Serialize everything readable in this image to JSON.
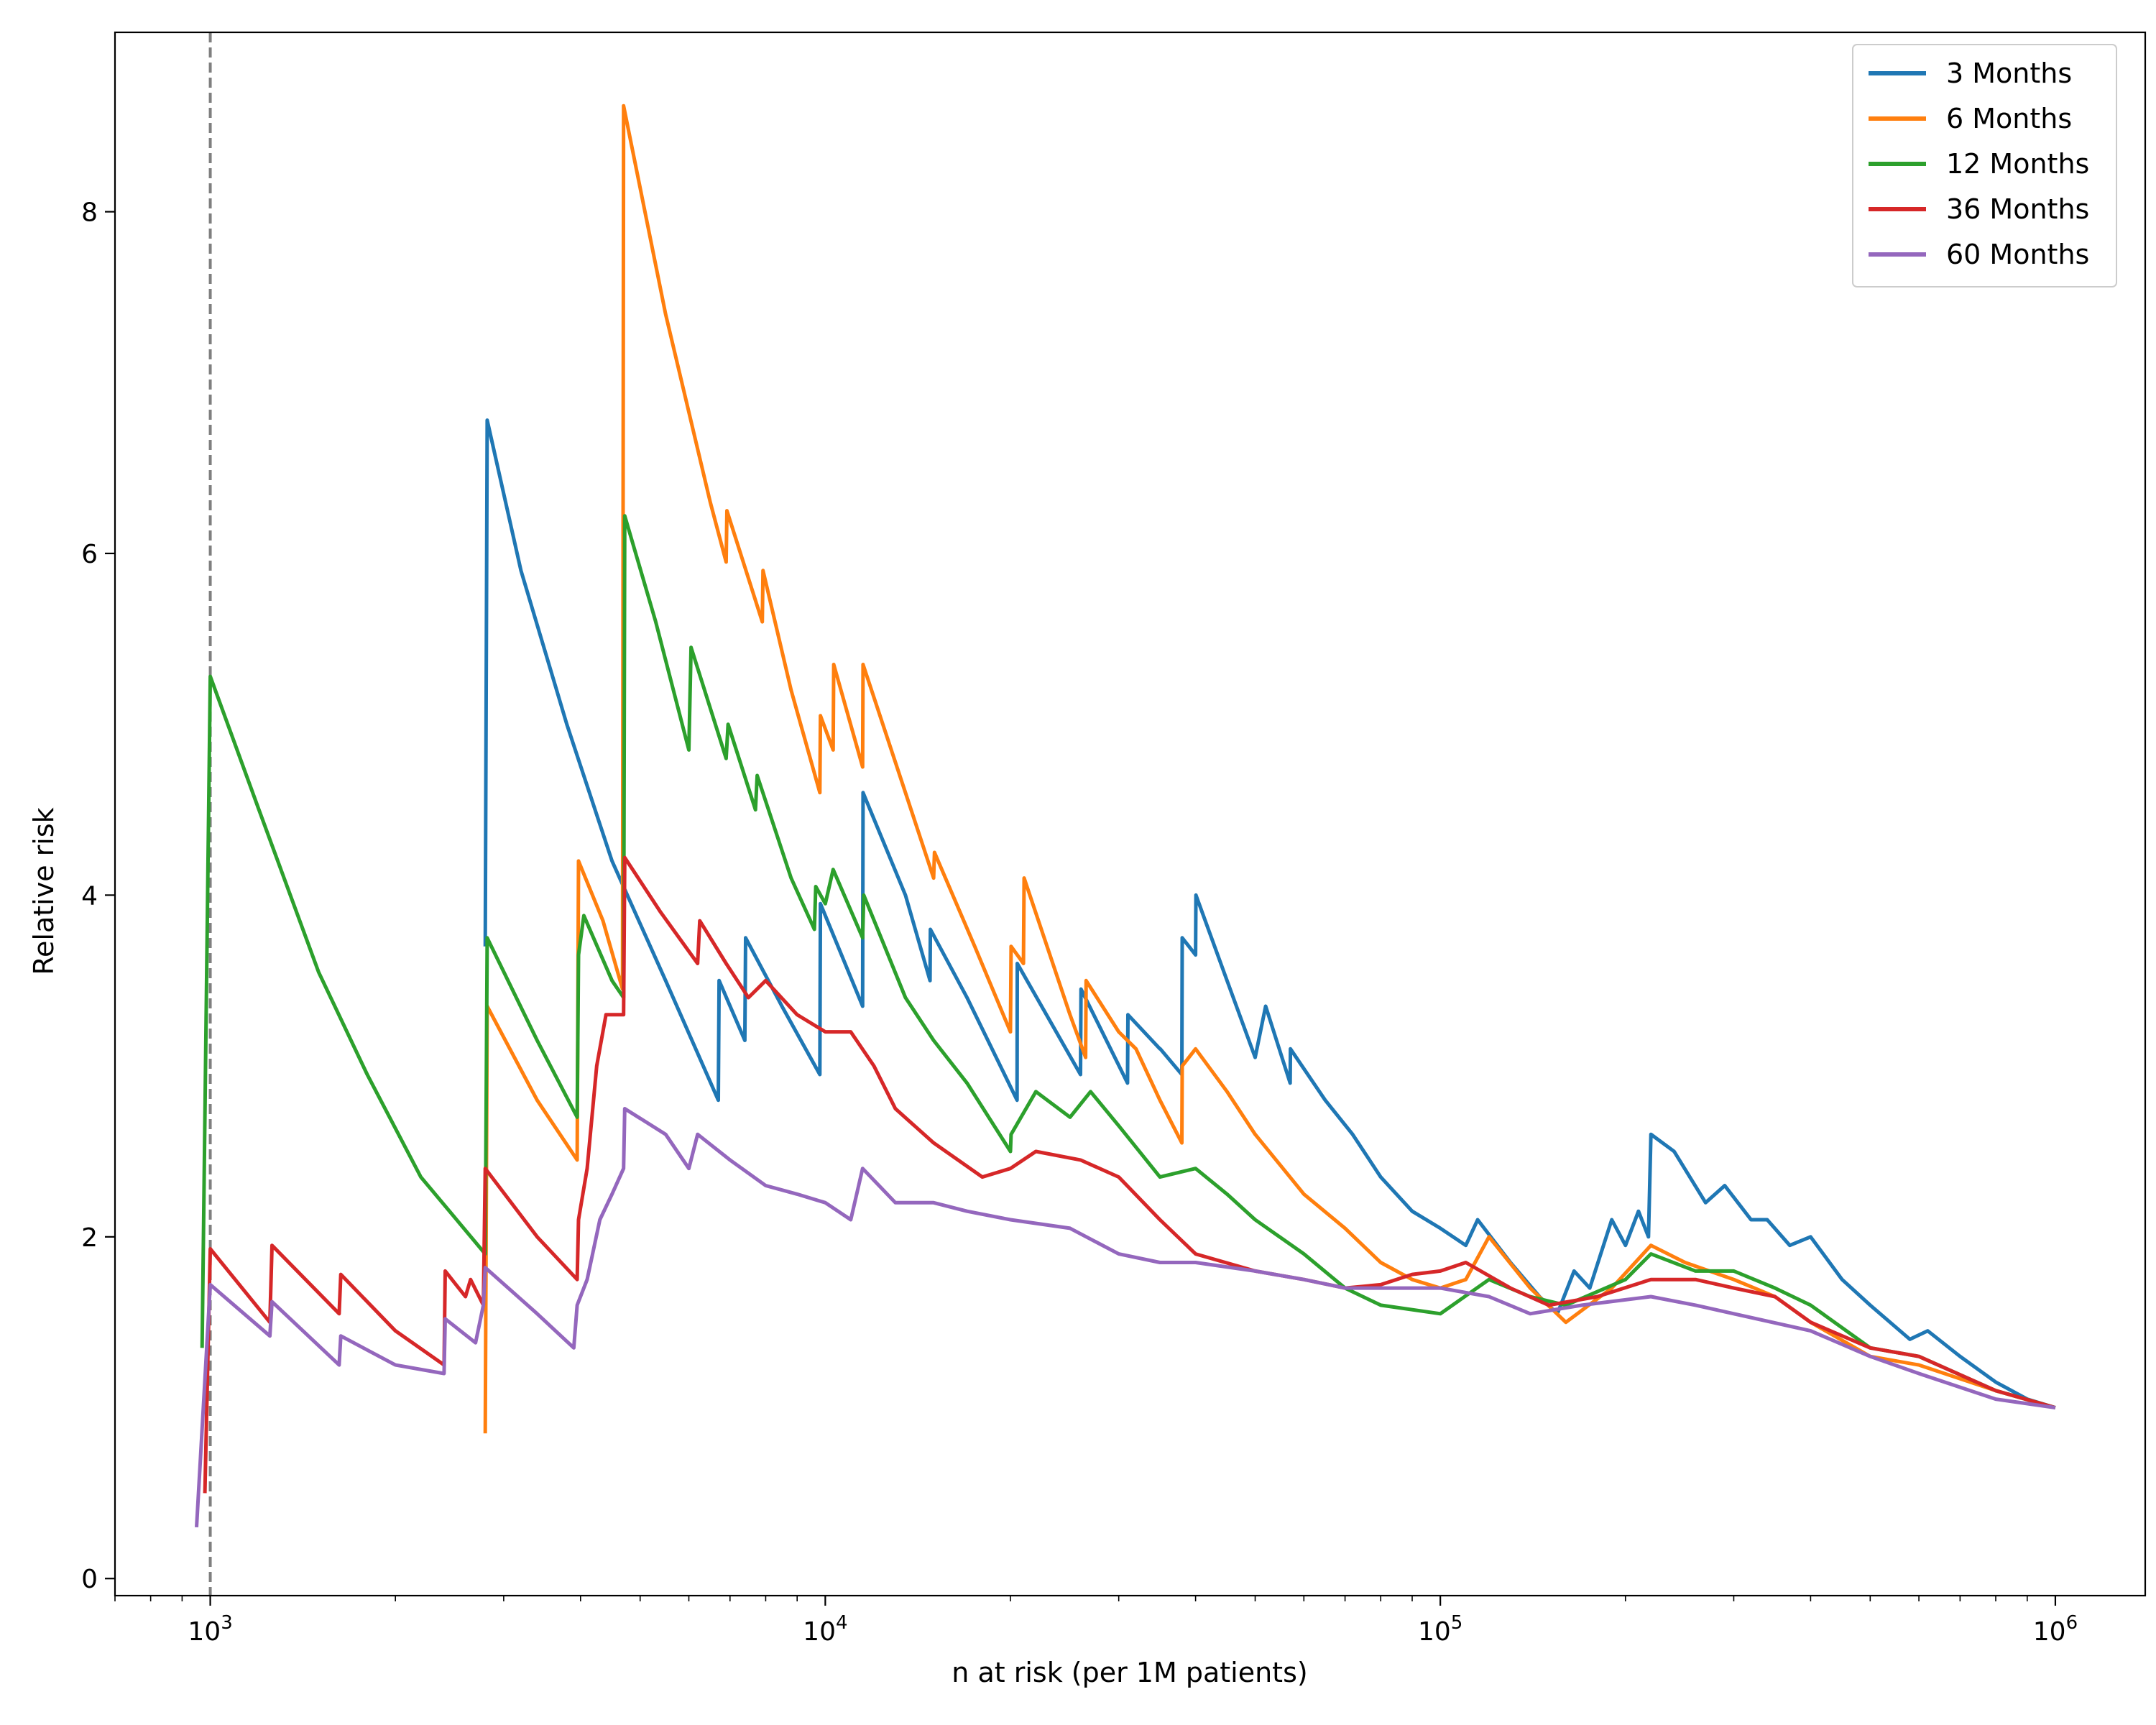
{
  "chart_data": {
    "type": "line",
    "xlabel": "n at risk (per 1M patients)",
    "ylabel": "Relative risk",
    "xscale": "log",
    "xlim": [
      700,
      1400000
    ],
    "ylim": [
      -0.1,
      9.05
    ],
    "x_ticks": [
      {
        "value": 1000,
        "base": "10",
        "exp": "3"
      },
      {
        "value": 10000,
        "base": "10",
        "exp": "4"
      },
      {
        "value": 100000,
        "base": "10",
        "exp": "5"
      },
      {
        "value": 1000000,
        "base": "10",
        "exp": "6"
      }
    ],
    "y_ticks": [
      {
        "value": 0,
        "label": "0"
      },
      {
        "value": 2,
        "label": "2"
      },
      {
        "value": 4,
        "label": "4"
      },
      {
        "value": 6,
        "label": "6"
      },
      {
        "value": 8,
        "label": "8"
      }
    ],
    "reference_line": {
      "x": 1000,
      "style": "dashed",
      "color": "#7f7f7f"
    },
    "legend_position": "top-right",
    "grid": false,
    "series": [
      {
        "name": "3 Months",
        "color": "#1f77b4",
        "points": [
          [
            2800,
            3.7
          ],
          [
            2820,
            6.78
          ],
          [
            3200,
            5.9
          ],
          [
            3800,
            5.0
          ],
          [
            4500,
            4.2
          ],
          [
            5500,
            3.5
          ],
          [
            6700,
            2.8
          ],
          [
            6720,
            3.5
          ],
          [
            7400,
            3.15
          ],
          [
            7420,
            3.75
          ],
          [
            8500,
            3.35
          ],
          [
            9800,
            2.95
          ],
          [
            9820,
            3.95
          ],
          [
            11500,
            3.35
          ],
          [
            11520,
            4.6
          ],
          [
            13500,
            4.0
          ],
          [
            14800,
            3.5
          ],
          [
            14820,
            3.8
          ],
          [
            17000,
            3.4
          ],
          [
            20500,
            2.8
          ],
          [
            20520,
            3.6
          ],
          [
            26000,
            2.95
          ],
          [
            26050,
            3.45
          ],
          [
            31000,
            2.9
          ],
          [
            31050,
            3.3
          ],
          [
            35000,
            3.1
          ],
          [
            35050,
            3.1
          ],
          [
            38000,
            2.95
          ],
          [
            38050,
            3.75
          ],
          [
            40000,
            3.65
          ],
          [
            40050,
            4.0
          ],
          [
            45000,
            3.5
          ],
          [
            50000,
            3.05
          ],
          [
            52000,
            3.35
          ],
          [
            57000,
            2.9
          ],
          [
            57050,
            3.1
          ],
          [
            65000,
            2.8
          ],
          [
            72000,
            2.6
          ],
          [
            80000,
            2.35
          ],
          [
            90000,
            2.15
          ],
          [
            100000,
            2.05
          ],
          [
            110000,
            1.95
          ],
          [
            115000,
            2.1
          ],
          [
            130000,
            1.85
          ],
          [
            145000,
            1.65
          ],
          [
            155000,
            1.55
          ],
          [
            165000,
            1.8
          ],
          [
            175000,
            1.7
          ],
          [
            190000,
            2.1
          ],
          [
            200000,
            1.95
          ],
          [
            210000,
            2.15
          ],
          [
            218000,
            2.0
          ],
          [
            220000,
            2.6
          ],
          [
            240000,
            2.5
          ],
          [
            270000,
            2.2
          ],
          [
            290000,
            2.3
          ],
          [
            320000,
            2.1
          ],
          [
            340000,
            2.1
          ],
          [
            370000,
            1.95
          ],
          [
            400000,
            2.0
          ],
          [
            450000,
            1.75
          ],
          [
            500000,
            1.6
          ],
          [
            580000,
            1.4
          ],
          [
            620000,
            1.45
          ],
          [
            700000,
            1.3
          ],
          [
            800000,
            1.15
          ],
          [
            900000,
            1.05
          ],
          [
            1000000,
            1.0
          ]
        ]
      },
      {
        "name": "6 Months",
        "color": "#ff7f0e",
        "points": [
          [
            2800,
            0.85
          ],
          [
            2820,
            3.35
          ],
          [
            3400,
            2.8
          ],
          [
            3950,
            2.45
          ],
          [
            3970,
            4.2
          ],
          [
            4350,
            3.85
          ],
          [
            4680,
            3.45
          ],
          [
            4700,
            8.62
          ],
          [
            5500,
            7.4
          ],
          [
            6500,
            6.3
          ],
          [
            6900,
            5.95
          ],
          [
            6920,
            6.25
          ],
          [
            7900,
            5.6
          ],
          [
            7920,
            5.9
          ],
          [
            8800,
            5.2
          ],
          [
            9800,
            4.6
          ],
          [
            9820,
            5.05
          ],
          [
            10300,
            4.85
          ],
          [
            10320,
            5.35
          ],
          [
            11500,
            4.75
          ],
          [
            11520,
            5.35
          ],
          [
            13500,
            4.6
          ],
          [
            15000,
            4.1
          ],
          [
            15050,
            4.25
          ],
          [
            17500,
            3.7
          ],
          [
            20000,
            3.2
          ],
          [
            20050,
            3.7
          ],
          [
            21000,
            3.6
          ],
          [
            21050,
            4.1
          ],
          [
            25000,
            3.3
          ],
          [
            26500,
            3.05
          ],
          [
            26550,
            3.5
          ],
          [
            30000,
            3.2
          ],
          [
            32000,
            3.1
          ],
          [
            35000,
            2.8
          ],
          [
            38000,
            2.55
          ],
          [
            38050,
            3.0
          ],
          [
            40000,
            3.1
          ],
          [
            45000,
            2.85
          ],
          [
            50000,
            2.6
          ],
          [
            60000,
            2.25
          ],
          [
            70000,
            2.05
          ],
          [
            80000,
            1.85
          ],
          [
            90000,
            1.75
          ],
          [
            100000,
            1.7
          ],
          [
            110000,
            1.75
          ],
          [
            120000,
            2.0
          ],
          [
            140000,
            1.7
          ],
          [
            160000,
            1.5
          ],
          [
            190000,
            1.7
          ],
          [
            220000,
            1.95
          ],
          [
            250000,
            1.85
          ],
          [
            300000,
            1.75
          ],
          [
            350000,
            1.65
          ],
          [
            400000,
            1.5
          ],
          [
            500000,
            1.3
          ],
          [
            600000,
            1.25
          ],
          [
            800000,
            1.1
          ],
          [
            1000000,
            1.0
          ]
        ]
      },
      {
        "name": "12 Months",
        "color": "#2ca02c",
        "points": [
          [
            970,
            1.35
          ],
          [
            1000,
            5.28
          ],
          [
            1200,
            4.5
          ],
          [
            1500,
            3.55
          ],
          [
            1800,
            2.95
          ],
          [
            2200,
            2.35
          ],
          [
            2800,
            1.9
          ],
          [
            2820,
            3.75
          ],
          [
            3400,
            3.15
          ],
          [
            3950,
            2.7
          ],
          [
            3970,
            3.65
          ],
          [
            4050,
            3.88
          ],
          [
            4500,
            3.5
          ],
          [
            4700,
            3.4
          ],
          [
            4720,
            6.22
          ],
          [
            5300,
            5.6
          ],
          [
            6000,
            4.85
          ],
          [
            6050,
            5.45
          ],
          [
            6900,
            4.8
          ],
          [
            6950,
            5.0
          ],
          [
            7700,
            4.5
          ],
          [
            7750,
            4.7
          ],
          [
            8800,
            4.1
          ],
          [
            9600,
            3.8
          ],
          [
            9650,
            4.05
          ],
          [
            10000,
            3.95
          ],
          [
            10300,
            4.15
          ],
          [
            11500,
            3.75
          ],
          [
            11550,
            4.0
          ],
          [
            13500,
            3.4
          ],
          [
            15000,
            3.15
          ],
          [
            17000,
            2.9
          ],
          [
            20000,
            2.5
          ],
          [
            20050,
            2.6
          ],
          [
            22000,
            2.85
          ],
          [
            25000,
            2.7
          ],
          [
            27000,
            2.85
          ],
          [
            30000,
            2.65
          ],
          [
            35000,
            2.35
          ],
          [
            40000,
            2.4
          ],
          [
            45000,
            2.25
          ],
          [
            50000,
            2.1
          ],
          [
            60000,
            1.9
          ],
          [
            70000,
            1.7
          ],
          [
            80000,
            1.6
          ],
          [
            100000,
            1.55
          ],
          [
            120000,
            1.75
          ],
          [
            140000,
            1.65
          ],
          [
            160000,
            1.6
          ],
          [
            200000,
            1.75
          ],
          [
            220000,
            1.9
          ],
          [
            260000,
            1.8
          ],
          [
            300000,
            1.8
          ],
          [
            350000,
            1.7
          ],
          [
            400000,
            1.6
          ],
          [
            500000,
            1.35
          ],
          [
            600000,
            1.3
          ],
          [
            800000,
            1.1
          ],
          [
            1000000,
            1.0
          ]
        ]
      },
      {
        "name": "36 Months",
        "color": "#d62728",
        "points": [
          [
            980,
            0.5
          ],
          [
            1000,
            1.93
          ],
          [
            1250,
            1.5
          ],
          [
            1260,
            1.95
          ],
          [
            1620,
            1.55
          ],
          [
            1630,
            1.78
          ],
          [
            2000,
            1.45
          ],
          [
            2400,
            1.25
          ],
          [
            2410,
            1.8
          ],
          [
            2600,
            1.65
          ],
          [
            2650,
            1.75
          ],
          [
            2780,
            1.6
          ],
          [
            2800,
            2.4
          ],
          [
            3400,
            2.0
          ],
          [
            3950,
            1.75
          ],
          [
            3970,
            2.1
          ],
          [
            4100,
            2.4
          ],
          [
            4250,
            3.0
          ],
          [
            4400,
            3.3
          ],
          [
            4700,
            3.3
          ],
          [
            4720,
            4.22
          ],
          [
            5400,
            3.9
          ],
          [
            6200,
            3.6
          ],
          [
            6250,
            3.85
          ],
          [
            6900,
            3.6
          ],
          [
            7500,
            3.4
          ],
          [
            8000,
            3.5
          ],
          [
            9000,
            3.3
          ],
          [
            10000,
            3.2
          ],
          [
            11000,
            3.2
          ],
          [
            12000,
            3.0
          ],
          [
            13000,
            2.75
          ],
          [
            15000,
            2.55
          ],
          [
            18000,
            2.35
          ],
          [
            20000,
            2.4
          ],
          [
            22000,
            2.5
          ],
          [
            26000,
            2.45
          ],
          [
            30000,
            2.35
          ],
          [
            35000,
            2.1
          ],
          [
            40000,
            1.9
          ],
          [
            50000,
            1.8
          ],
          [
            60000,
            1.75
          ],
          [
            70000,
            1.7
          ],
          [
            80000,
            1.72
          ],
          [
            90000,
            1.78
          ],
          [
            100000,
            1.8
          ],
          [
            110000,
            1.85
          ],
          [
            130000,
            1.7
          ],
          [
            150000,
            1.6
          ],
          [
            180000,
            1.65
          ],
          [
            220000,
            1.75
          ],
          [
            260000,
            1.75
          ],
          [
            300000,
            1.7
          ],
          [
            350000,
            1.65
          ],
          [
            400000,
            1.5
          ],
          [
            500000,
            1.35
          ],
          [
            600000,
            1.3
          ],
          [
            800000,
            1.1
          ],
          [
            1000000,
            1.0
          ]
        ]
      },
      {
        "name": "60 Months",
        "color": "#9467bd",
        "points": [
          [
            950,
            0.3
          ],
          [
            1000,
            1.72
          ],
          [
            1250,
            1.42
          ],
          [
            1260,
            1.62
          ],
          [
            1620,
            1.25
          ],
          [
            1630,
            1.42
          ],
          [
            2000,
            1.25
          ],
          [
            2400,
            1.2
          ],
          [
            2410,
            1.52
          ],
          [
            2700,
            1.38
          ],
          [
            2780,
            1.6
          ],
          [
            2800,
            1.82
          ],
          [
            3400,
            1.55
          ],
          [
            3900,
            1.35
          ],
          [
            3950,
            1.6
          ],
          [
            4100,
            1.75
          ],
          [
            4300,
            2.1
          ],
          [
            4500,
            2.25
          ],
          [
            4700,
            2.4
          ],
          [
            4720,
            2.75
          ],
          [
            5500,
            2.6
          ],
          [
            6000,
            2.4
          ],
          [
            6200,
            2.6
          ],
          [
            7000,
            2.45
          ],
          [
            8000,
            2.3
          ],
          [
            9000,
            2.25
          ],
          [
            10000,
            2.2
          ],
          [
            11000,
            2.1
          ],
          [
            11500,
            2.4
          ],
          [
            13000,
            2.2
          ],
          [
            15000,
            2.2
          ],
          [
            17000,
            2.15
          ],
          [
            20000,
            2.1
          ],
          [
            25000,
            2.05
          ],
          [
            30000,
            1.9
          ],
          [
            35000,
            1.85
          ],
          [
            40000,
            1.85
          ],
          [
            50000,
            1.8
          ],
          [
            60000,
            1.75
          ],
          [
            70000,
            1.7
          ],
          [
            80000,
            1.7
          ],
          [
            100000,
            1.7
          ],
          [
            120000,
            1.65
          ],
          [
            140000,
            1.55
          ],
          [
            170000,
            1.6
          ],
          [
            220000,
            1.65
          ],
          [
            260000,
            1.6
          ],
          [
            300000,
            1.55
          ],
          [
            400000,
            1.45
          ],
          [
            500000,
            1.3
          ],
          [
            600000,
            1.2
          ],
          [
            800000,
            1.05
          ],
          [
            1000000,
            1.0
          ]
        ]
      }
    ]
  }
}
